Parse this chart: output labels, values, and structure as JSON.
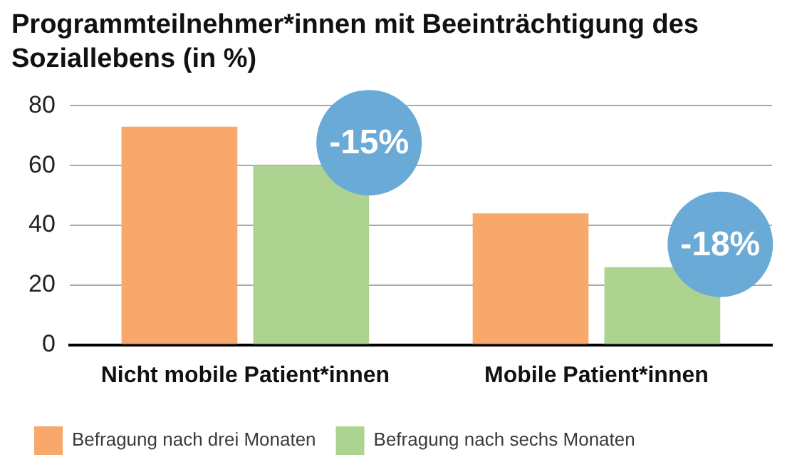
{
  "chart_data": {
    "type": "bar",
    "title": "Programmteilnehmer*innen mit Beeinträchtigung des Soziallebens (in %)",
    "categories": [
      "Nicht mobile Patient*innen",
      "Mobile Patient*innen"
    ],
    "series": [
      {
        "name": "Befragung nach drei Monaten",
        "color": "#f8a86a",
        "values": [
          73,
          44
        ]
      },
      {
        "name": "Befragung nach sechs Monaten",
        "color": "#acd490",
        "values": [
          60,
          26
        ]
      }
    ],
    "ylim": [
      0,
      80
    ],
    "yticks": [
      0,
      20,
      40,
      60,
      80
    ],
    "grid": "y",
    "legend": "bottom",
    "annotations": [
      "-15%",
      "-18%"
    ]
  }
}
